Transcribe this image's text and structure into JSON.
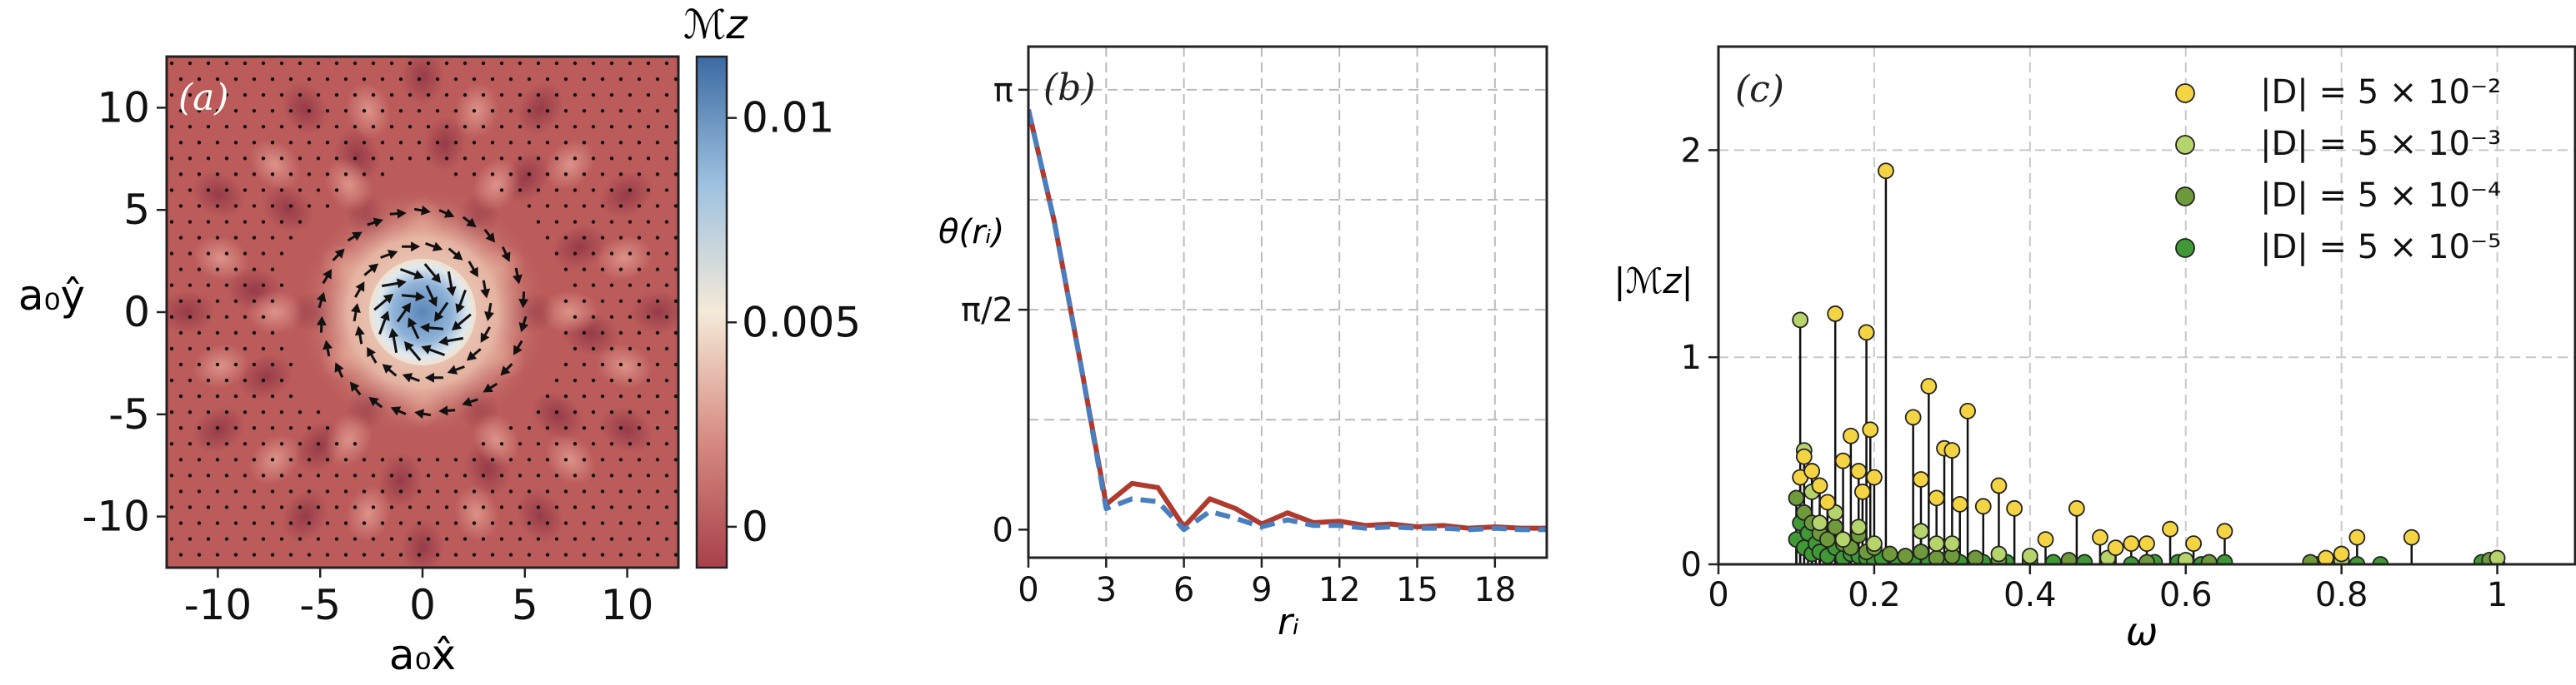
{
  "chart_data": [
    {
      "type": "heatmap",
      "panel_label": "(a)",
      "xlabel": "a₀x̂",
      "ylabel": "a₀ŷ",
      "xlim": [
        -12.5,
        12.5
      ],
      "ylim": [
        -12.5,
        12.5
      ],
      "x_ticks": [
        -10,
        -5,
        0,
        5,
        10
      ],
      "x_tick_labels": [
        "-10",
        "-5",
        "0",
        "5",
        "10"
      ],
      "y_ticks": [
        -10,
        -5,
        0,
        5,
        10
      ],
      "y_tick_labels": [
        "-10",
        "-5",
        "0",
        "5",
        "10"
      ],
      "colorbar": {
        "title": "ℳz",
        "range": [
          -0.001,
          0.0115
        ],
        "ticks": [
          0,
          0.005,
          0.01
        ],
        "tick_labels": [
          "0",
          "0.005",
          "0.01"
        ],
        "colors": [
          "#a8404a",
          "#d78b82",
          "#f4ead8",
          "#9ec1e0",
          "#3b6aa2"
        ]
      }
    },
    {
      "type": "line",
      "panel_label": "(b)",
      "xlabel": "rᵢ",
      "ylabel": "θ(rᵢ)",
      "xlim": [
        0,
        20
      ],
      "ylim": [
        -0.2,
        3.45
      ],
      "x_ticks": [
        0,
        3,
        6,
        9,
        12,
        15,
        18
      ],
      "x_tick_labels": [
        "0",
        "3",
        "6",
        "9",
        "12",
        "15",
        "18"
      ],
      "y_ticks": [
        0,
        1.5708,
        3.1416
      ],
      "y_tick_labels": [
        "0",
        "π/2",
        "π"
      ],
      "grid": true,
      "series": [
        {
          "style": "solid",
          "color": "#b03a2e",
          "x": [
            0,
            1,
            2,
            3,
            4,
            5,
            6,
            7,
            8,
            9,
            10,
            11,
            12,
            13,
            14,
            15,
            16,
            17,
            18,
            19,
            20
          ],
          "y": [
            3.0,
            2.2,
            1.2,
            0.18,
            0.33,
            0.3,
            0.02,
            0.22,
            0.15,
            0.04,
            0.12,
            0.05,
            0.06,
            0.03,
            0.04,
            0.02,
            0.03,
            0.01,
            0.02,
            0.01,
            0.01
          ]
        },
        {
          "style": "dashed",
          "color": "#4a7fbf",
          "x": [
            0,
            1,
            2,
            3,
            4,
            5,
            6,
            7,
            8,
            9,
            10,
            11,
            12,
            13,
            14,
            15,
            16,
            17,
            18,
            19,
            20
          ],
          "y": [
            3.0,
            2.2,
            1.2,
            0.15,
            0.22,
            0.2,
            0.0,
            0.13,
            0.08,
            0.02,
            0.07,
            0.03,
            0.03,
            0.01,
            0.02,
            0.01,
            0.01,
            0.0,
            0.01,
            0.0,
            0.0
          ]
        }
      ]
    },
    {
      "type": "scatter",
      "panel_label": "(c)",
      "xlabel": "ω",
      "ylabel": "|ℳz|",
      "xlim": [
        0,
        1.1
      ],
      "ylim": [
        0,
        2.5
      ],
      "x_ticks": [
        0,
        0.2,
        0.4,
        0.6,
        0.8,
        1.0
      ],
      "x_tick_labels": [
        "0",
        "0.2",
        "0.4",
        "0.6",
        "0.8",
        "1"
      ],
      "y_ticks": [
        0,
        1,
        2
      ],
      "y_tick_labels": [
        "0",
        "1",
        "2"
      ],
      "grid": true,
      "legend_position": "top-right",
      "series": [
        {
          "name": "|D| = 5 × 10⁻²",
          "color": "#f5d443",
          "x": [
            0.105,
            0.11,
            0.12,
            0.13,
            0.14,
            0.15,
            0.16,
            0.17,
            0.18,
            0.185,
            0.19,
            0.195,
            0.2,
            0.215,
            0.25,
            0.26,
            0.27,
            0.28,
            0.29,
            0.3,
            0.31,
            0.32,
            0.34,
            0.36,
            0.38,
            0.42,
            0.46,
            0.49,
            0.51,
            0.53,
            0.55,
            0.58,
            0.61,
            0.65,
            0.78,
            0.8,
            0.82,
            0.89
          ],
          "y": [
            0.42,
            0.52,
            0.45,
            0.38,
            0.3,
            1.21,
            0.5,
            0.62,
            0.45,
            0.35,
            1.12,
            0.65,
            0.42,
            1.9,
            0.71,
            0.41,
            0.86,
            0.32,
            0.56,
            0.55,
            0.29,
            0.74,
            0.28,
            0.38,
            0.27,
            0.12,
            0.27,
            0.13,
            0.08,
            0.1,
            0.1,
            0.17,
            0.1,
            0.16,
            0.03,
            0.05,
            0.13,
            0.13
          ]
        },
        {
          "name": "|D| = 5 × 10⁻³",
          "color": "#b5d46b",
          "x": [
            0.105,
            0.11,
            0.12,
            0.13,
            0.15,
            0.16,
            0.18,
            0.2,
            0.26,
            0.28,
            0.3,
            0.36,
            0.4,
            0.5,
            0.6,
            0.8,
            1.0
          ],
          "y": [
            1.18,
            0.55,
            0.35,
            0.2,
            0.25,
            0.12,
            0.18,
            0.1,
            0.16,
            0.1,
            0.1,
            0.05,
            0.04,
            0.03,
            0.02,
            0.02,
            0.03
          ]
        },
        {
          "name": "|D| = 5 × 10⁻⁴",
          "color": "#6f9a3b",
          "x": [
            0.1,
            0.11,
            0.12,
            0.13,
            0.14,
            0.15,
            0.16,
            0.17,
            0.18,
            0.19,
            0.2,
            0.22,
            0.24,
            0.26,
            0.28,
            0.3,
            0.33,
            0.36,
            0.4,
            0.45,
            0.5,
            0.55,
            0.6,
            0.63,
            0.76,
            0.8,
            0.99
          ],
          "y": [
            0.32,
            0.25,
            0.2,
            0.15,
            0.12,
            0.18,
            0.1,
            0.08,
            0.14,
            0.06,
            0.08,
            0.05,
            0.04,
            0.06,
            0.03,
            0.04,
            0.03,
            0.02,
            0.02,
            0.02,
            0.01,
            0.01,
            0.01,
            0.01,
            0.01,
            0.01,
            0.02
          ]
        },
        {
          "name": "|D| = 5 × 10⁻⁵",
          "color": "#3f9a35",
          "x": [
            0.1,
            0.105,
            0.11,
            0.115,
            0.12,
            0.125,
            0.13,
            0.14,
            0.15,
            0.16,
            0.17,
            0.18,
            0.19,
            0.2,
            0.21,
            0.23,
            0.25,
            0.27,
            0.29,
            0.31,
            0.34,
            0.37,
            0.4,
            0.43,
            0.47,
            0.5,
            0.53,
            0.56,
            0.59,
            0.62,
            0.65,
            0.77,
            0.79,
            0.82,
            0.85,
            0.98,
            1.0
          ],
          "y": [
            0.12,
            0.2,
            0.08,
            0.15,
            0.05,
            0.1,
            0.06,
            0.04,
            0.08,
            0.03,
            0.05,
            0.04,
            0.03,
            0.02,
            0.03,
            0.02,
            0.02,
            0.01,
            0.02,
            0.01,
            0.01,
            0.01,
            0.01,
            0.01,
            0.01,
            0.01,
            0.0,
            0.01,
            0.01,
            0.0,
            0.01,
            0.0,
            0.01,
            0.0,
            0.0,
            0.01,
            0.0
          ]
        }
      ]
    }
  ]
}
